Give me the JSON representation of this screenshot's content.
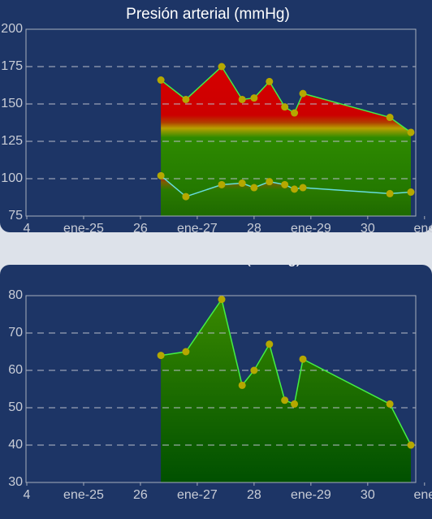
{
  "chart_data": [
    {
      "type": "area",
      "title": "Presión arterial (mmHg)",
      "x": [
        26.36,
        26.8,
        27.43,
        27.79,
        28.0,
        28.27,
        28.54,
        28.71,
        28.86,
        30.39,
        30.76
      ],
      "series": [
        {
          "color": "#44ee44",
          "values": [
            166,
            153,
            175,
            153,
            154,
            165,
            148,
            144,
            157,
            141,
            131
          ]
        },
        {
          "color": "#66dddd",
          "values": [
            102,
            88,
            96,
            97,
            94,
            98,
            96,
            93,
            94,
            90,
            91
          ]
        }
      ],
      "xlim": [
        24,
        30.86
      ],
      "xticks": [
        {
          "value": 24,
          "label": "4"
        },
        {
          "value": 25,
          "label": "ene-25"
        },
        26,
        {
          "value": 27,
          "label": "ene-27"
        },
        28,
        {
          "value": 29,
          "label": "ene-29"
        },
        30,
        {
          "value": 31,
          "label": "ene"
        }
      ],
      "ylim": [
        75,
        200
      ],
      "yticks": [
        75,
        100,
        125,
        150,
        175,
        200
      ],
      "grid": true
    },
    {
      "type": "area",
      "title": "Presión diferencial (mmHg)",
      "x": [
        26.36,
        26.8,
        27.43,
        27.79,
        28.0,
        28.27,
        28.54,
        28.71,
        28.86,
        30.39,
        30.76
      ],
      "series": [
        {
          "color": "#44ee44",
          "values": [
            64,
            65,
            79,
            56,
            60,
            67,
            52,
            51,
            63,
            51,
            40
          ]
        }
      ],
      "xlim": [
        24,
        30.86
      ],
      "xticks": [
        {
          "value": 24,
          "label": "4"
        },
        {
          "value": 25,
          "label": "ene-25"
        },
        26,
        {
          "value": 27,
          "label": "ene-27"
        },
        28,
        {
          "value": 29,
          "label": "ene-29"
        },
        30,
        {
          "value": 31,
          "label": "ene"
        }
      ],
      "ylim": [
        30,
        80
      ],
      "yticks": [
        30,
        40,
        50,
        60,
        70,
        80
      ],
      "grid": true
    }
  ]
}
